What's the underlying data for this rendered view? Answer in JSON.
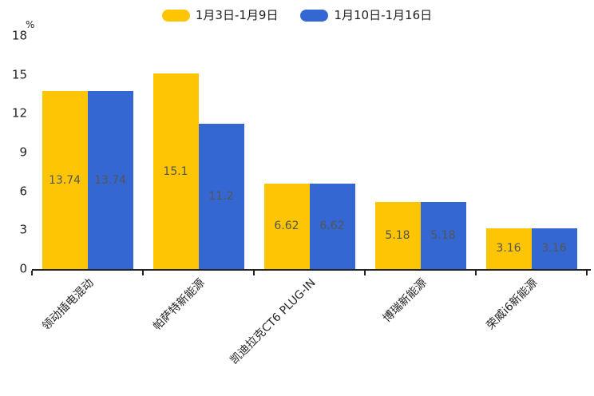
{
  "chart_data": {
    "type": "bar",
    "title": "",
    "unit_label": "%",
    "categories": [
      "领动插电混动",
      "帕萨特新能源",
      "凯迪拉克CT6 PLUG-IN",
      "博瑞新能源",
      "荣威i6新能源"
    ],
    "series": [
      {
        "name": "1月3日-1月9日",
        "color": "#FDC504",
        "values": [
          13.74,
          15.1,
          6.62,
          5.18,
          3.16
        ]
      },
      {
        "name": "1月10日-1月16日",
        "color": "#3467D1",
        "values": [
          13.74,
          11.2,
          6.62,
          5.18,
          3.16
        ]
      }
    ],
    "data_labels": [
      [
        "13.74",
        "15.1",
        "6.62",
        "5.18",
        "3.16"
      ],
      [
        "13.74",
        "11.2",
        "6.62",
        "5.18",
        "3.16"
      ]
    ],
    "ylim": [
      0,
      18
    ],
    "yticks": [
      0,
      3,
      6,
      9,
      12,
      15,
      18
    ],
    "grid": false,
    "legend_position": "top-center",
    "colors": {
      "axis": "#222222",
      "tick_text": "#222222",
      "data_label_text": "#555555",
      "background": "#ffffff"
    }
  }
}
